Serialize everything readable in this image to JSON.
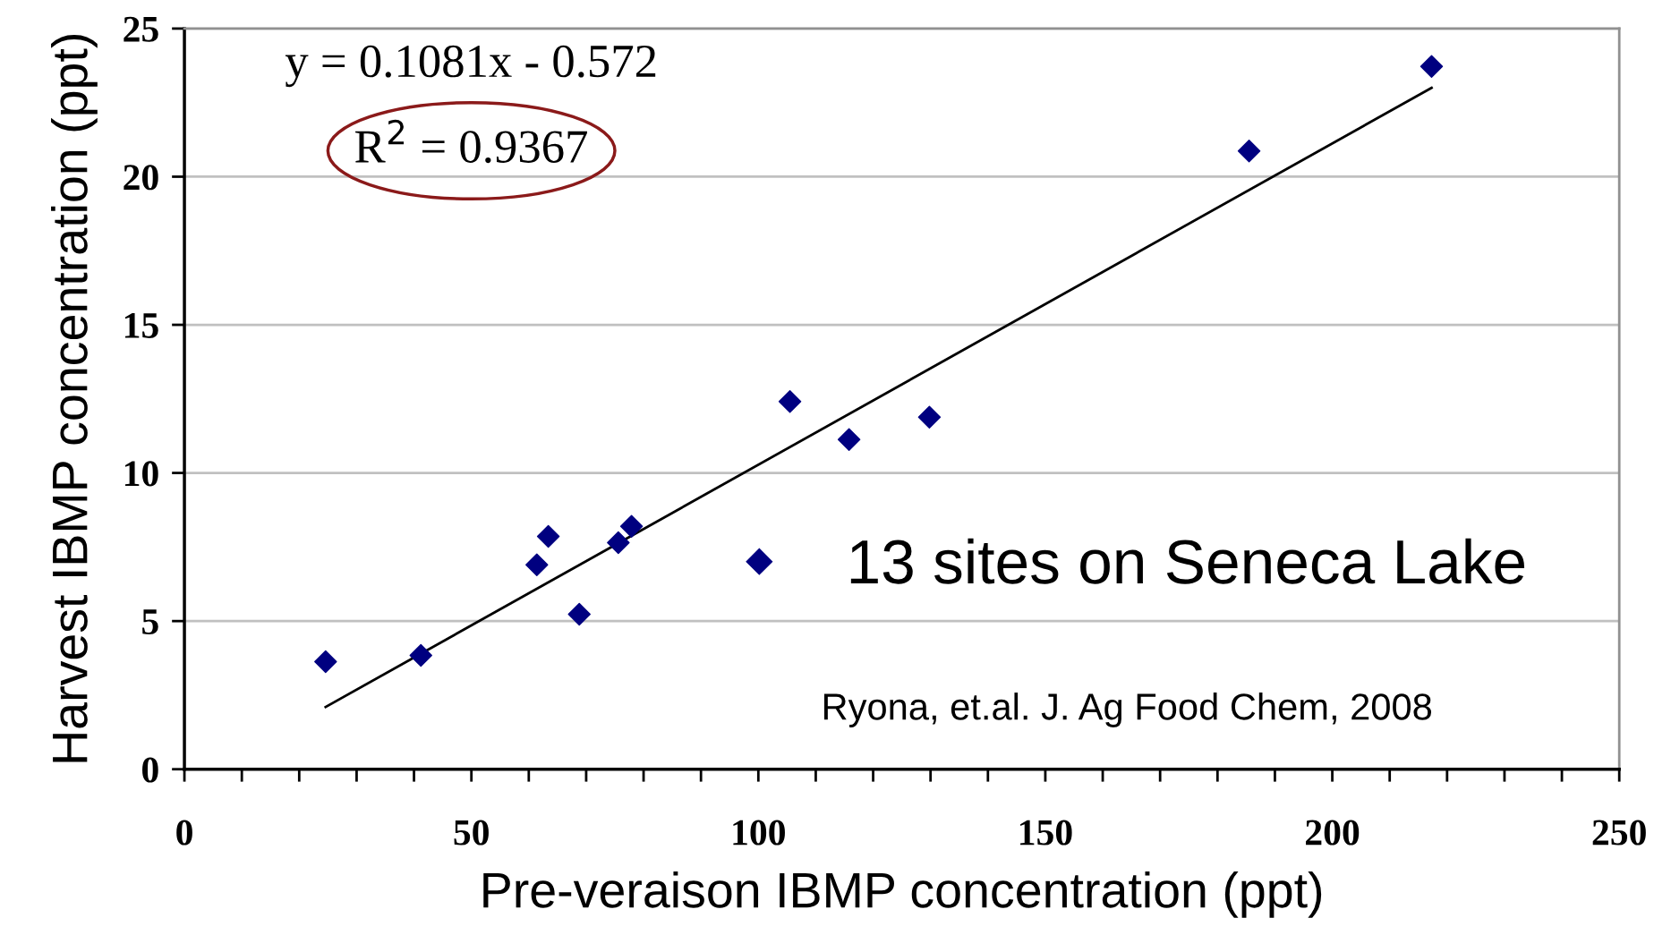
{
  "chart_data": {
    "type": "scatter",
    "xlabel": "Pre-veraison IBMP concentration (ppt)",
    "ylabel": "Harvest IBMP concentration (ppt)",
    "series": [
      {
        "name": "13 sites on Seneca Lake",
        "color": "#000080",
        "marker": "diamond",
        "x": [
          24.6,
          41.2,
          61.4,
          63.4,
          68.8,
          75.6,
          77.9,
          105.5,
          115.8,
          129.8,
          185.5,
          217.3
        ],
        "values": [
          3.63,
          3.84,
          6.9,
          7.86,
          5.23,
          7.65,
          8.2,
          12.41,
          11.13,
          11.88,
          20.87,
          23.72
        ]
      },
      {
        "type": "line",
        "color": "#000000",
        "line_style": "solid",
        "marker": "none",
        "x": [
          24.6,
          217.3
        ],
        "values": [
          2.1,
          23.0
        ]
      }
    ],
    "xlim": [
      0,
      250
    ],
    "ylim": [
      0,
      25
    ],
    "xticks": [
      0,
      {
        "value": 10,
        "label": null
      },
      {
        "value": 20,
        "label": null
      },
      {
        "value": 30,
        "label": null
      },
      {
        "value": 40,
        "label": null
      },
      50,
      {
        "value": 60,
        "label": null
      },
      {
        "value": 70,
        "label": null
      },
      {
        "value": 80,
        "label": null
      },
      {
        "value": 90,
        "label": null
      },
      100,
      {
        "value": 110,
        "label": null
      },
      {
        "value": 120,
        "label": null
      },
      {
        "value": 130,
        "label": null
      },
      {
        "value": 140,
        "label": null
      },
      150,
      {
        "value": 160,
        "label": null
      },
      {
        "value": 170,
        "label": null
      },
      {
        "value": 180,
        "label": null
      },
      {
        "value": 190,
        "label": null
      },
      200,
      {
        "value": 210,
        "label": null
      },
      {
        "value": 220,
        "label": null
      },
      {
        "value": 230,
        "label": null
      },
      {
        "value": 240,
        "label": null
      },
      250
    ],
    "yticks": [
      0,
      5,
      10,
      15,
      20,
      25
    ],
    "grid": "y",
    "legend": "right",
    "annotations": [
      "y = 0.1081x - 0.572",
      "R$^{2}$ = 0.9367",
      "Ryona, et.al. J. Ag Food Chem, 2008"
    ]
  }
}
